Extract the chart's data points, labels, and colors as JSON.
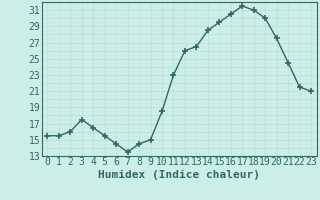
{
  "x": [
    0,
    1,
    2,
    3,
    4,
    5,
    6,
    7,
    8,
    9,
    10,
    11,
    12,
    13,
    14,
    15,
    16,
    17,
    18,
    19,
    20,
    21,
    22,
    23
  ],
  "y": [
    15.5,
    15.5,
    16.0,
    17.5,
    16.5,
    15.5,
    14.5,
    13.5,
    14.5,
    15.0,
    18.5,
    23.0,
    26.0,
    26.5,
    28.5,
    29.5,
    30.5,
    31.5,
    31.0,
    30.0,
    27.5,
    24.5,
    21.5,
    21.0
  ],
  "line_color": "#2e6b5e",
  "marker": "+",
  "marker_size": 4,
  "marker_lw": 1.2,
  "bg_color": "#cceee8",
  "grid_minor_color": "#b8ddd8",
  "grid_major_color": "#b8ddd8",
  "xlabel": "Humidex (Indice chaleur)",
  "xlabel_fontsize": 8,
  "xlim": [
    -0.5,
    23.5
  ],
  "ylim": [
    13,
    32
  ],
  "yticks": [
    13,
    15,
    17,
    19,
    21,
    23,
    25,
    27,
    29,
    31
  ],
  "tick_fontsize": 7,
  "line_width": 1.0
}
